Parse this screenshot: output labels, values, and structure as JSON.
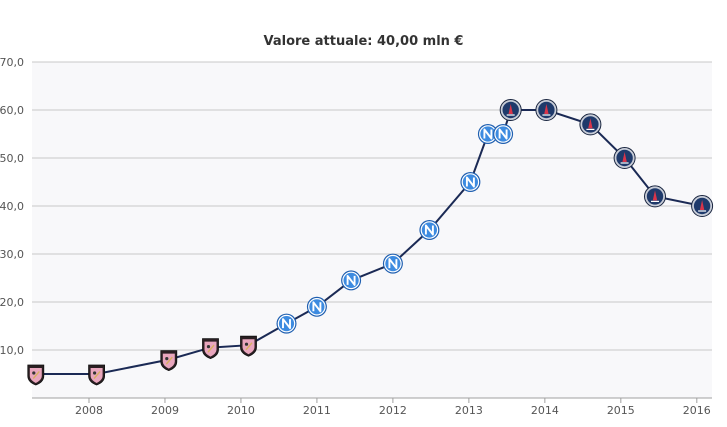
{
  "chart_data": {
    "type": "line",
    "title": "Valore attuale: 40,00 mln €",
    "xlabel": "",
    "ylabel": "",
    "ylim": [
      0,
      70
    ],
    "xlim": [
      2007.25,
      2016.2
    ],
    "grid": true,
    "x_ticks": [
      "2008",
      "2009",
      "2010",
      "2011",
      "2012",
      "2013",
      "2014",
      "2015",
      "2016"
    ],
    "y_ticks": [
      "10,0",
      "20,0",
      "30,0",
      "40,0",
      "50,0",
      "60,0",
      "70,0"
    ],
    "colors": {
      "line": "#1b2a55",
      "grid": "#c8c8c8",
      "plot_bg": "#f8f8fa",
      "palermo": "#e9a6bd",
      "napoli": "#3d8be0",
      "psg": "#1f3a6b"
    },
    "series": [
      {
        "points": [
          {
            "x": 2007.3,
            "y": 5,
            "club": "palermo"
          },
          {
            "x": 2008.1,
            "y": 5,
            "club": "palermo"
          },
          {
            "x": 2009.05,
            "y": 8,
            "club": "palermo"
          },
          {
            "x": 2009.6,
            "y": 10.5,
            "club": "palermo"
          },
          {
            "x": 2010.1,
            "y": 11,
            "club": "palermo"
          },
          {
            "x": 2010.6,
            "y": 15.5,
            "club": "napoli"
          },
          {
            "x": 2011.0,
            "y": 19,
            "club": "napoli"
          },
          {
            "x": 2011.45,
            "y": 24.5,
            "club": "napoli"
          },
          {
            "x": 2012.0,
            "y": 28,
            "club": "napoli"
          },
          {
            "x": 2012.48,
            "y": 35,
            "club": "napoli"
          },
          {
            "x": 2013.02,
            "y": 45,
            "club": "napoli"
          },
          {
            "x": 2013.25,
            "y": 55,
            "club": "napoli"
          },
          {
            "x": 2013.45,
            "y": 55,
            "club": "napoli"
          },
          {
            "x": 2013.55,
            "y": 60,
            "club": "psg"
          },
          {
            "x": 2014.02,
            "y": 60,
            "club": "psg"
          },
          {
            "x": 2014.6,
            "y": 57,
            "club": "psg"
          },
          {
            "x": 2015.05,
            "y": 50,
            "club": "psg"
          },
          {
            "x": 2015.45,
            "y": 42,
            "club": "psg"
          },
          {
            "x": 2016.07,
            "y": 40,
            "club": "psg"
          }
        ]
      }
    ]
  }
}
